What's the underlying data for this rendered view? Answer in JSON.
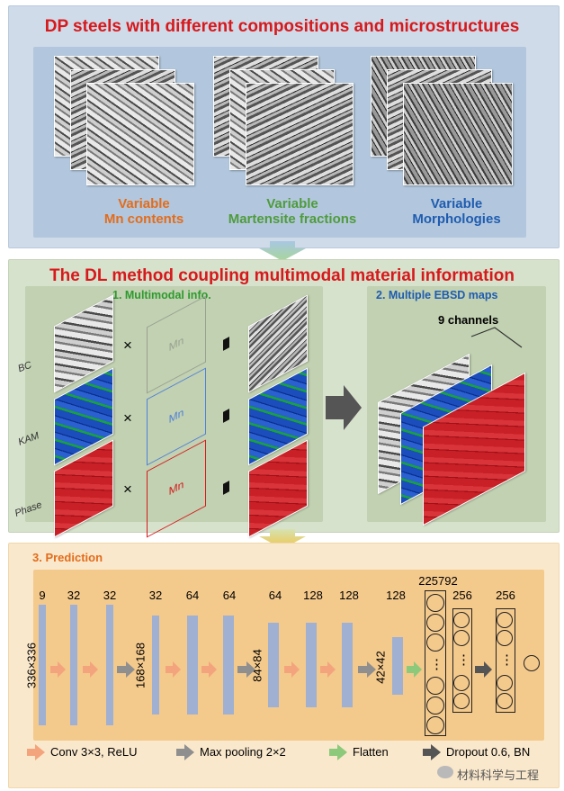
{
  "section1": {
    "title": "DP steels with different compositions and microstructures",
    "groups": [
      {
        "line1": "Variable",
        "line2": "Mn contents",
        "color": "#e36c1b"
      },
      {
        "line1": "Variable",
        "line2": "Martensite fractions",
        "color": "#4f9b3c"
      },
      {
        "line1": "Variable",
        "line2": "Morphologies",
        "color": "#1f5cb0"
      }
    ]
  },
  "section2": {
    "title": "The DL method coupling multimodal material information",
    "sub1": "1. Multimodal info.",
    "sub2": "2. Multiple EBSD maps",
    "rows": [
      {
        "label": "BC",
        "mn": "Mn"
      },
      {
        "label": "KAM",
        "mn": "Mn"
      },
      {
        "label": "Phase",
        "mn": "Mn"
      }
    ],
    "times": "×",
    "channels": "9 channels"
  },
  "section3": {
    "title": "3. Prediction",
    "top_numbers": [
      "9",
      "32",
      "32",
      "32",
      "64",
      "64",
      "64",
      "128",
      "128",
      "128",
      "225792",
      "256",
      "256"
    ],
    "dims": [
      "336×336",
      "168×168",
      "84×84",
      "42×42"
    ],
    "dots": "⋮",
    "legend": [
      {
        "text": "Conv 3×3, ReLU",
        "color": "#f4a47c"
      },
      {
        "text": "Max pooling  2×2",
        "color": "#8f8f8f"
      },
      {
        "text": "Flatten",
        "color": "#8cc97a"
      },
      {
        "text": "Dropout 0.6, BN",
        "color": "#555555"
      }
    ]
  },
  "watermark": "材料科学与工程",
  "colors": {
    "red_title": "#d7191c",
    "orange": "#e36c1b",
    "green": "#2e9a2e",
    "blue": "#1f5cb0"
  }
}
